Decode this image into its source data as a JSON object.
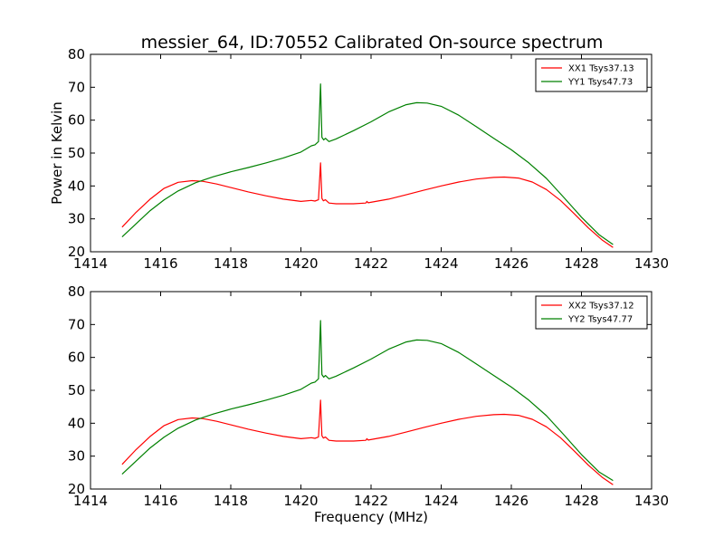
{
  "figure": {
    "title": "messier_64, ID:70552 Calibrated On-source spectrum",
    "ylabel": "Power in Kelvin",
    "xlabel": "Frequency (MHz)"
  },
  "chart_data": [
    {
      "type": "line",
      "title": "messier_64, ID:70552 Calibrated On-source spectrum",
      "xlabel": "",
      "ylabel": "Power in Kelvin",
      "xlim": [
        1414,
        1430
      ],
      "ylim": [
        20,
        80
      ],
      "xticks": [
        "1414",
        "1416",
        "1418",
        "1420",
        "1422",
        "1424",
        "1426",
        "1428",
        "1430"
      ],
      "yticks": [
        "20",
        "30",
        "40",
        "50",
        "60",
        "70",
        "80"
      ],
      "grid": false,
      "legend_position": "top-right",
      "series": [
        {
          "name": "XX1 Tsys37.13",
          "color": "#ff0000",
          "x": [
            1414.9,
            1415.3,
            1415.7,
            1416.1,
            1416.5,
            1416.9,
            1417.2,
            1417.6,
            1418.0,
            1418.5,
            1419.0,
            1419.5,
            1420.0,
            1420.3,
            1420.4,
            1420.5,
            1420.56,
            1420.6,
            1420.64,
            1420.7,
            1420.8,
            1421.0,
            1421.5,
            1421.85,
            1421.88,
            1421.92,
            1422.5,
            1423.0,
            1423.5,
            1424.0,
            1424.5,
            1425.0,
            1425.5,
            1425.8,
            1426.2,
            1426.6,
            1427.0,
            1427.4,
            1427.8,
            1428.2,
            1428.6,
            1428.9
          ],
          "y": [
            27.5,
            32.0,
            36.0,
            39.3,
            41.1,
            41.6,
            41.4,
            40.6,
            39.5,
            38.2,
            37.0,
            36.0,
            35.3,
            35.6,
            35.4,
            35.8,
            47.0,
            36.2,
            35.5,
            35.8,
            34.8,
            34.6,
            34.6,
            34.8,
            35.3,
            34.9,
            36.0,
            37.3,
            38.7,
            40.0,
            41.2,
            42.1,
            42.6,
            42.7,
            42.4,
            41.2,
            38.9,
            35.6,
            31.5,
            27.2,
            23.5,
            21.3
          ]
        },
        {
          "name": "YY1 Tsys47.73",
          "color": "#008000",
          "x": [
            1414.9,
            1415.3,
            1415.7,
            1416.1,
            1416.5,
            1417.0,
            1417.5,
            1418.0,
            1418.5,
            1419.0,
            1419.5,
            1420.0,
            1420.3,
            1420.4,
            1420.5,
            1420.56,
            1420.6,
            1420.65,
            1420.7,
            1420.8,
            1421.0,
            1421.5,
            1422.0,
            1422.5,
            1423.0,
            1423.3,
            1423.6,
            1424.0,
            1424.5,
            1425.0,
            1425.5,
            1426.0,
            1426.5,
            1427.0,
            1427.5,
            1428.0,
            1428.5,
            1428.9
          ],
          "y": [
            24.5,
            28.5,
            32.5,
            35.8,
            38.5,
            41.0,
            42.8,
            44.3,
            45.6,
            47.0,
            48.5,
            50.3,
            52.2,
            52.5,
            53.5,
            71.0,
            54.8,
            54.0,
            54.5,
            53.5,
            54.3,
            56.8,
            59.5,
            62.5,
            64.7,
            65.3,
            65.2,
            64.2,
            61.5,
            58.0,
            54.5,
            51.0,
            47.0,
            42.3,
            36.5,
            30.5,
            25.2,
            22.2
          ]
        }
      ]
    },
    {
      "type": "line",
      "title": "",
      "xlabel": "Frequency (MHz)",
      "ylabel": "",
      "xlim": [
        1414,
        1430
      ],
      "ylim": [
        20,
        80
      ],
      "xticks": [
        "1414",
        "1416",
        "1418",
        "1420",
        "1422",
        "1424",
        "1426",
        "1428",
        "1430"
      ],
      "yticks": [
        "20",
        "30",
        "40",
        "50",
        "60",
        "70",
        "80"
      ],
      "grid": false,
      "legend_position": "top-right",
      "series": [
        {
          "name": "XX2 Tsys37.12",
          "color": "#ff0000",
          "x": [
            1414.9,
            1415.3,
            1415.7,
            1416.1,
            1416.5,
            1416.9,
            1417.2,
            1417.6,
            1418.0,
            1418.5,
            1419.0,
            1419.5,
            1420.0,
            1420.3,
            1420.4,
            1420.5,
            1420.56,
            1420.6,
            1420.64,
            1420.7,
            1420.8,
            1421.0,
            1421.5,
            1421.85,
            1421.88,
            1421.92,
            1422.5,
            1423.0,
            1423.5,
            1424.0,
            1424.5,
            1425.0,
            1425.5,
            1425.8,
            1426.2,
            1426.6,
            1427.0,
            1427.4,
            1427.8,
            1428.2,
            1428.6,
            1428.9
          ],
          "y": [
            27.5,
            32.0,
            36.0,
            39.3,
            41.1,
            41.6,
            41.4,
            40.6,
            39.5,
            38.2,
            37.0,
            36.0,
            35.3,
            35.6,
            35.4,
            35.8,
            47.0,
            36.2,
            35.5,
            35.8,
            34.8,
            34.6,
            34.6,
            34.8,
            35.3,
            34.9,
            36.0,
            37.3,
            38.7,
            40.0,
            41.2,
            42.1,
            42.6,
            42.7,
            42.4,
            41.2,
            38.9,
            35.6,
            31.5,
            27.2,
            23.5,
            21.3
          ]
        },
        {
          "name": "YY2 Tsys47.77",
          "color": "#008000",
          "x": [
            1414.9,
            1415.3,
            1415.7,
            1416.1,
            1416.5,
            1417.0,
            1417.5,
            1418.0,
            1418.5,
            1419.0,
            1419.5,
            1420.0,
            1420.3,
            1420.4,
            1420.5,
            1420.56,
            1420.6,
            1420.65,
            1420.7,
            1420.8,
            1421.0,
            1421.5,
            1422.0,
            1422.5,
            1423.0,
            1423.3,
            1423.6,
            1424.0,
            1424.5,
            1425.0,
            1425.5,
            1426.0,
            1426.5,
            1427.0,
            1427.5,
            1428.0,
            1428.5,
            1428.9
          ],
          "y": [
            24.5,
            28.5,
            32.5,
            35.8,
            38.5,
            41.0,
            42.8,
            44.3,
            45.6,
            47.0,
            48.5,
            50.3,
            52.2,
            52.5,
            53.5,
            71.2,
            54.8,
            54.0,
            54.5,
            53.5,
            54.3,
            56.8,
            59.5,
            62.5,
            64.7,
            65.3,
            65.2,
            64.2,
            61.5,
            58.0,
            54.5,
            51.0,
            47.0,
            42.3,
            36.5,
            30.5,
            25.2,
            22.6
          ]
        }
      ]
    }
  ]
}
